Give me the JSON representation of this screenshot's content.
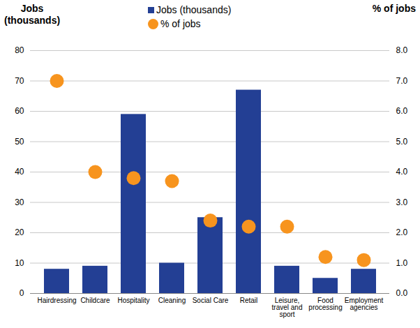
{
  "chart_data": {
    "type": "bar",
    "categories": [
      "Hairdressing",
      "Childcare",
      "Hospitality",
      "Cleaning",
      "Social Care",
      "Retail",
      "Leisure, travel and sport",
      "Food processing",
      "Employment agencies"
    ],
    "series": [
      {
        "name": "Jobs (thousands)",
        "type": "bar",
        "color": "#233f94",
        "values": [
          8,
          9,
          59,
          10,
          25,
          67,
          9,
          5,
          8
        ]
      },
      {
        "name": "% of jobs",
        "type": "scatter",
        "marker": "circle",
        "axis": "y2",
        "color": "#f7941e",
        "values": [
          7.0,
          4.0,
          3.8,
          3.7,
          2.4,
          2.2,
          2.2,
          1.2,
          1.1
        ]
      }
    ],
    "y_label": "Jobs (thousands)",
    "y2_label": "% of jobs",
    "ylim": [
      0,
      80
    ],
    "yticks": [
      0,
      10,
      20,
      30,
      40,
      50,
      60,
      70,
      80
    ],
    "y2lim": [
      0,
      8
    ],
    "y2ticks": [
      {
        "value": 0,
        "label": "0.0"
      },
      {
        "value": 1,
        "label": "1.0"
      },
      {
        "value": 2,
        "label": "2.0"
      },
      {
        "value": 3,
        "label": "3.0"
      },
      {
        "value": 4,
        "label": "4.0"
      },
      {
        "value": 5,
        "label": "5.0"
      },
      {
        "value": 6,
        "label": "6.0"
      },
      {
        "value": 7,
        "label": "7.0"
      },
      {
        "value": 8,
        "label": "8.0"
      }
    ],
    "grid": true,
    "legend": "top"
  }
}
